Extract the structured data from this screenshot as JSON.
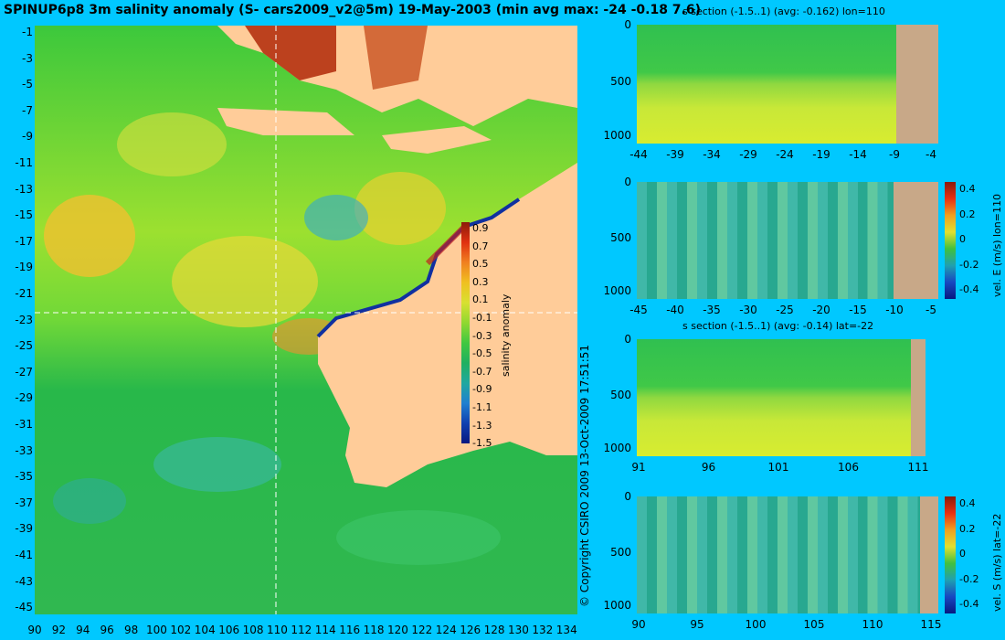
{
  "title": "SPINUP6p8 3m salinity anomaly (S- cars2009_v2@5m) 19-May-2003 (min avg max: -24 -0.18 7.6)",
  "copyright": "© Copyright CSIRO 2009   13-Oct-2009 17:51:51",
  "map": {
    "lat_ticks": [
      "-1",
      "-3",
      "-5",
      "-7",
      "-9",
      "-11",
      "-13",
      "-15",
      "-17",
      "-19",
      "-21",
      "-23",
      "-25",
      "-27",
      "-29",
      "-31",
      "-33",
      "-35",
      "-37",
      "-39",
      "-41",
      "-43",
      "-45"
    ],
    "lon_ticks": [
      "90",
      "92",
      "94",
      "96",
      "98",
      "100",
      "102",
      "104",
      "106",
      "108",
      "110",
      "112",
      "114",
      "116",
      "118",
      "120",
      "122",
      "124",
      "126",
      "128",
      "130",
      "132",
      "134"
    ],
    "crosshair": {
      "lon": 110,
      "lat": -22
    },
    "land_color": "#ffcc99"
  },
  "colorbar": {
    "label": "salinity anomaly",
    "ticks": [
      "0.9",
      "0.7",
      "0.5",
      "0.3",
      "0.1",
      "-0.1",
      "-0.3",
      "-0.5",
      "-0.7",
      "-0.9",
      "-1.1",
      "-1.3",
      "-1.5"
    ]
  },
  "panels": [
    {
      "title": "s section (-1.5..1) (avg: -0.162) lon=110",
      "y_ticks": [
        "0",
        "500",
        "1000"
      ],
      "x_ticks": [
        "-44",
        "-39",
        "-34",
        "-29",
        "-24",
        "-19",
        "-14",
        "-9",
        "-4"
      ],
      "side_label": "",
      "cb_ticks": []
    },
    {
      "title": "",
      "y_ticks": [
        "0",
        "500",
        "1000"
      ],
      "x_ticks": [
        "-45",
        "-40",
        "-35",
        "-30",
        "-25",
        "-20",
        "-15",
        "-10",
        "-5"
      ],
      "side_label": "vel. E (m/s) lon=110",
      "cb_ticks": [
        "0.4",
        "0.2",
        "0",
        "-0.2",
        "-0.4"
      ]
    },
    {
      "title": "s section (-1.5..1) (avg: -0.14) lat=-22",
      "y_ticks": [
        "0",
        "500",
        "1000"
      ],
      "x_ticks": [
        "91",
        "96",
        "101",
        "106",
        "111"
      ],
      "side_label": "",
      "cb_ticks": []
    },
    {
      "title": "",
      "y_ticks": [
        "0",
        "500",
        "1000"
      ],
      "x_ticks": [
        "90",
        "95",
        "100",
        "105",
        "110",
        "115"
      ],
      "side_label": "vel. S (m/s) lat=-22",
      "cb_ticks": [
        "0.4",
        "0.2",
        "0",
        "-0.2",
        "-0.4"
      ]
    }
  ],
  "colors": {
    "background": "#00c8ff",
    "land": "#ffcc99",
    "section_land": "#c8a888"
  }
}
